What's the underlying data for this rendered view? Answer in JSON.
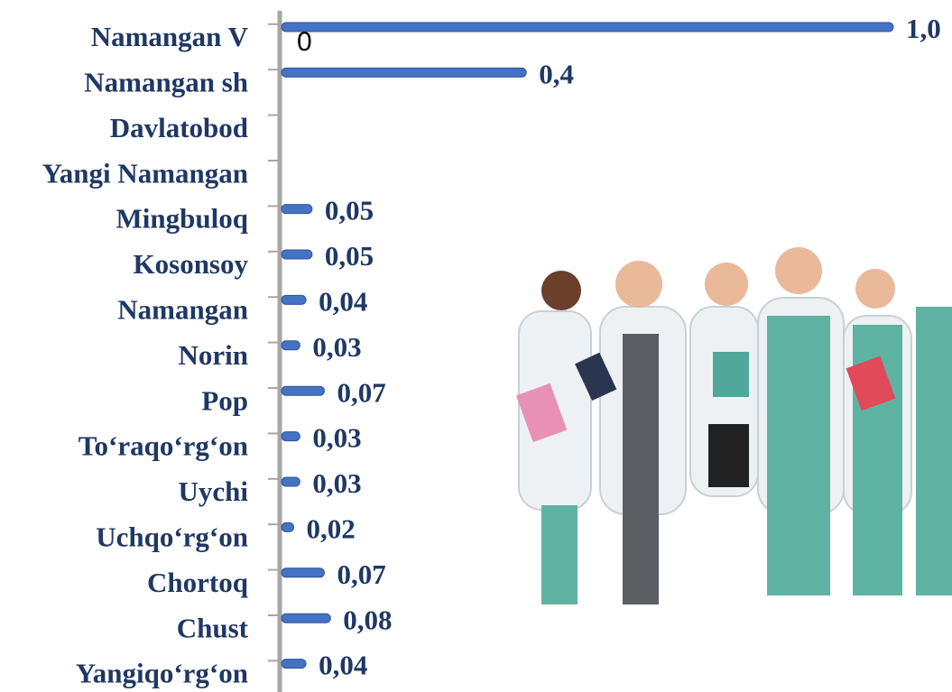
{
  "chart_data": {
    "type": "bar",
    "orientation": "horizontal",
    "categories": [
      "Namangan V",
      "Namangan sh",
      "Davlatobod",
      "Yangi Namangan",
      "Mingbuloq",
      "Kosonsoy",
      "Namangan",
      "Norin",
      "Pop",
      "To‘raqo‘rg‘on",
      "Uychi",
      "Uchqo‘rg‘on",
      "Chortoq",
      "Chust",
      "Yangiqo‘rg‘on"
    ],
    "values": [
      1.0,
      0.4,
      null,
      null,
      0.05,
      0.05,
      0.04,
      0.03,
      0.07,
      0.03,
      0.03,
      0.02,
      0.07,
      0.08,
      0.04
    ],
    "value_labels": [
      "1,0",
      "0,4",
      null,
      null,
      "0,05",
      "0,05",
      "0,04",
      "0,03",
      "0,07",
      "0,03",
      "0,03",
      "0,02",
      "0,07",
      "0,08",
      "0,04"
    ],
    "color": "#4472c4",
    "xlim": [
      0,
      1.0
    ],
    "xticks": [
      0
    ]
  }
}
